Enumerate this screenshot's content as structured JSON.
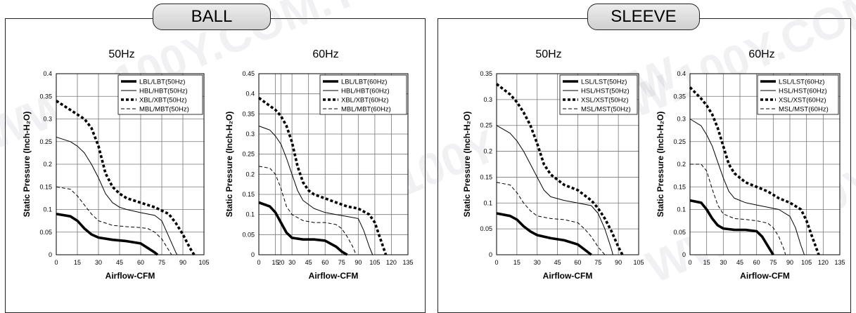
{
  "groups": [
    {
      "title": "BALL"
    },
    {
      "title": "SLEEVE"
    }
  ],
  "watermark": "WWW.100Y.COM.TW",
  "chart_data": [
    {
      "type": "line",
      "title": "50Hz",
      "xlabel": "Airflow-CFM",
      "ylabel": "Static Pressure (Inch-H₂O)",
      "xlim": [
        0,
        105
      ],
      "ylim": [
        0,
        0.4
      ],
      "xticks": [
        "0",
        "15",
        "30",
        "45",
        "60",
        "75",
        "90",
        "105"
      ],
      "yticks": [
        "0",
        "0.05",
        "0.1",
        "0.15",
        "0.2",
        "0.25",
        "0.3",
        "0.35",
        "0.4"
      ],
      "grid": true,
      "legend": "top-right",
      "series": [
        {
          "name": "LBL/LBT(50Hz)",
          "style": "thick",
          "x": [
            0,
            10,
            15,
            20,
            25,
            30,
            40,
            50,
            60,
            65,
            70,
            72
          ],
          "y": [
            0.09,
            0.085,
            0.075,
            0.058,
            0.045,
            0.038,
            0.033,
            0.03,
            0.025,
            0.015,
            0.005,
            0
          ]
        },
        {
          "name": "HBL/HBT(50Hz)",
          "style": "thin",
          "x": [
            0,
            10,
            15,
            20,
            25,
            30,
            35,
            40,
            45,
            50,
            60,
            70,
            75,
            80,
            85,
            86
          ],
          "y": [
            0.26,
            0.25,
            0.24,
            0.225,
            0.2,
            0.17,
            0.135,
            0.115,
            0.105,
            0.1,
            0.093,
            0.087,
            0.075,
            0.04,
            0.005,
            0
          ]
        },
        {
          "name": "XBL/XBT(50Hz)",
          "style": "dotted",
          "x": [
            0,
            10,
            15,
            20,
            25,
            30,
            35,
            40,
            45,
            50,
            60,
            70,
            80,
            85,
            90,
            95,
            98
          ],
          "y": [
            0.34,
            0.32,
            0.31,
            0.3,
            0.28,
            0.24,
            0.18,
            0.15,
            0.135,
            0.125,
            0.115,
            0.105,
            0.09,
            0.07,
            0.045,
            0.015,
            0
          ]
        },
        {
          "name": "MBL/MBT(50Hz)",
          "style": "dashed",
          "x": [
            0,
            10,
            15,
            20,
            25,
            30,
            40,
            50,
            60,
            65,
            70,
            75,
            80,
            82
          ],
          "y": [
            0.15,
            0.145,
            0.13,
            0.11,
            0.09,
            0.075,
            0.065,
            0.062,
            0.06,
            0.058,
            0.05,
            0.035,
            0.01,
            0
          ]
        }
      ]
    },
    {
      "type": "line",
      "title": "60Hz",
      "xlabel": "Airflow-CFM",
      "ylabel": "Static Pressure (Inch-H₂O)",
      "xlim": [
        0,
        135
      ],
      "ylim": [
        0,
        0.45
      ],
      "xticks": [
        "0",
        "15",
        "20",
        "30",
        "45",
        "60",
        "75",
        "90",
        "105",
        "120",
        "135"
      ],
      "yticks": [
        "0",
        "0.05",
        "0.1",
        "0.15",
        "0.2",
        "0.25",
        "0.3",
        "0.35",
        "0.4",
        "0.45"
      ],
      "grid": true,
      "legend": "top-right",
      "series": [
        {
          "name": "LBL/LBT(60Hz)",
          "style": "thick",
          "x": [
            0,
            10,
            15,
            20,
            25,
            30,
            40,
            50,
            60,
            70,
            75,
            80
          ],
          "y": [
            0.13,
            0.12,
            0.105,
            0.08,
            0.055,
            0.042,
            0.038,
            0.038,
            0.035,
            0.02,
            0.008,
            0
          ]
        },
        {
          "name": "HBL/HBT(60Hz)",
          "style": "thin",
          "x": [
            0,
            10,
            15,
            20,
            25,
            30,
            35,
            40,
            50,
            60,
            70,
            80,
            90,
            95,
            100,
            103
          ],
          "y": [
            0.32,
            0.31,
            0.295,
            0.275,
            0.24,
            0.2,
            0.16,
            0.135,
            0.115,
            0.105,
            0.1,
            0.095,
            0.09,
            0.06,
            0.02,
            0
          ]
        },
        {
          "name": "XBL/XBT(60Hz)",
          "style": "dotted",
          "x": [
            0,
            10,
            15,
            20,
            25,
            30,
            35,
            40,
            45,
            50,
            60,
            70,
            80,
            90,
            100,
            105,
            110,
            115
          ],
          "y": [
            0.39,
            0.37,
            0.36,
            0.345,
            0.32,
            0.28,
            0.22,
            0.18,
            0.16,
            0.15,
            0.14,
            0.13,
            0.12,
            0.115,
            0.1,
            0.08,
            0.04,
            0
          ]
        },
        {
          "name": "MBL/MBT(60Hz)",
          "style": "dashed",
          "x": [
            0,
            10,
            15,
            20,
            25,
            30,
            40,
            50,
            60,
            70,
            75,
            80,
            85,
            88
          ],
          "y": [
            0.22,
            0.215,
            0.2,
            0.165,
            0.12,
            0.1,
            0.085,
            0.08,
            0.08,
            0.075,
            0.065,
            0.045,
            0.02,
            0
          ]
        }
      ]
    },
    {
      "type": "line",
      "title": "50Hz",
      "xlabel": "Airflow-CFM",
      "ylabel": "Static Pressure (Inch-H₂O)",
      "xlim": [
        0,
        105
      ],
      "ylim": [
        0,
        0.35
      ],
      "xticks": [
        "0",
        "15",
        "30",
        "45",
        "60",
        "75",
        "90",
        "105"
      ],
      "yticks": [
        "0",
        "0.05",
        "0.1",
        "0.15",
        "0.2",
        "0.25",
        "0.3",
        "0.35"
      ],
      "grid": true,
      "legend": "top-right",
      "series": [
        {
          "name": "LSL/LST(50Hz)",
          "style": "thick",
          "x": [
            0,
            10,
            15,
            20,
            25,
            30,
            40,
            50,
            60,
            65,
            70
          ],
          "y": [
            0.08,
            0.075,
            0.068,
            0.055,
            0.045,
            0.038,
            0.032,
            0.028,
            0.02,
            0.01,
            0
          ]
        },
        {
          "name": "HSL/HST(50Hz)",
          "style": "thin",
          "x": [
            0,
            10,
            15,
            20,
            25,
            30,
            35,
            40,
            50,
            60,
            70,
            75,
            80,
            85,
            86
          ],
          "y": [
            0.25,
            0.235,
            0.22,
            0.2,
            0.175,
            0.15,
            0.125,
            0.112,
            0.105,
            0.1,
            0.095,
            0.08,
            0.05,
            0.01,
            0
          ]
        },
        {
          "name": "XSL/XST(50Hz)",
          "style": "dotted",
          "x": [
            0,
            10,
            15,
            20,
            25,
            30,
            35,
            40,
            45,
            50,
            60,
            65,
            70,
            75,
            80,
            85,
            90,
            93
          ],
          "y": [
            0.33,
            0.31,
            0.295,
            0.275,
            0.25,
            0.215,
            0.175,
            0.155,
            0.145,
            0.135,
            0.125,
            0.115,
            0.105,
            0.09,
            0.07,
            0.045,
            0.015,
            0
          ]
        },
        {
          "name": "MSL/MST(50Hz)",
          "style": "dashed",
          "x": [
            0,
            10,
            15,
            20,
            25,
            30,
            40,
            50,
            60,
            65,
            70,
            75,
            80
          ],
          "y": [
            0.14,
            0.135,
            0.12,
            0.1,
            0.085,
            0.075,
            0.07,
            0.068,
            0.062,
            0.05,
            0.035,
            0.015,
            0
          ]
        }
      ]
    },
    {
      "type": "line",
      "title": "60Hz",
      "xlabel": "Airflow-CFM",
      "ylabel": "Static Pressure (Inch-H₂O)",
      "xlim": [
        0,
        135
      ],
      "ylim": [
        0,
        0.4
      ],
      "xticks": [
        "0",
        "15",
        "30",
        "45",
        "60",
        "75",
        "90",
        "105",
        "120",
        "135"
      ],
      "yticks": [
        "0",
        "0.05",
        "0.1",
        "0.15",
        "0.2",
        "0.25",
        "0.3",
        "0.35",
        "0.4"
      ],
      "grid": true,
      "legend": "top-right",
      "series": [
        {
          "name": "LSL/LST(60Hz)",
          "style": "thick",
          "x": [
            0,
            10,
            15,
            20,
            25,
            30,
            40,
            50,
            60,
            65,
            70,
            75
          ],
          "y": [
            0.12,
            0.115,
            0.1,
            0.08,
            0.065,
            0.058,
            0.055,
            0.055,
            0.052,
            0.04,
            0.02,
            0
          ]
        },
        {
          "name": "HSL/HST(60Hz)",
          "style": "thin",
          "x": [
            0,
            10,
            15,
            20,
            25,
            30,
            35,
            40,
            50,
            60,
            70,
            80,
            90,
            95,
            100,
            103
          ],
          "y": [
            0.3,
            0.285,
            0.265,
            0.24,
            0.205,
            0.17,
            0.14,
            0.125,
            0.115,
            0.11,
            0.105,
            0.1,
            0.085,
            0.06,
            0.02,
            0
          ]
        },
        {
          "name": "XSL/XST(60Hz)",
          "style": "dotted",
          "x": [
            0,
            10,
            15,
            20,
            25,
            30,
            35,
            40,
            45,
            50,
            60,
            70,
            80,
            90,
            100,
            105,
            110,
            116
          ],
          "y": [
            0.37,
            0.345,
            0.33,
            0.31,
            0.28,
            0.24,
            0.2,
            0.18,
            0.17,
            0.16,
            0.15,
            0.14,
            0.125,
            0.115,
            0.1,
            0.075,
            0.04,
            0
          ]
        },
        {
          "name": "MSL/MST(60Hz)",
          "style": "dashed",
          "x": [
            0,
            10,
            15,
            20,
            25,
            30,
            40,
            50,
            60,
            70,
            75,
            80,
            85,
            86
          ],
          "y": [
            0.2,
            0.2,
            0.185,
            0.145,
            0.11,
            0.09,
            0.08,
            0.078,
            0.075,
            0.07,
            0.06,
            0.04,
            0.01,
            0
          ]
        }
      ]
    }
  ]
}
